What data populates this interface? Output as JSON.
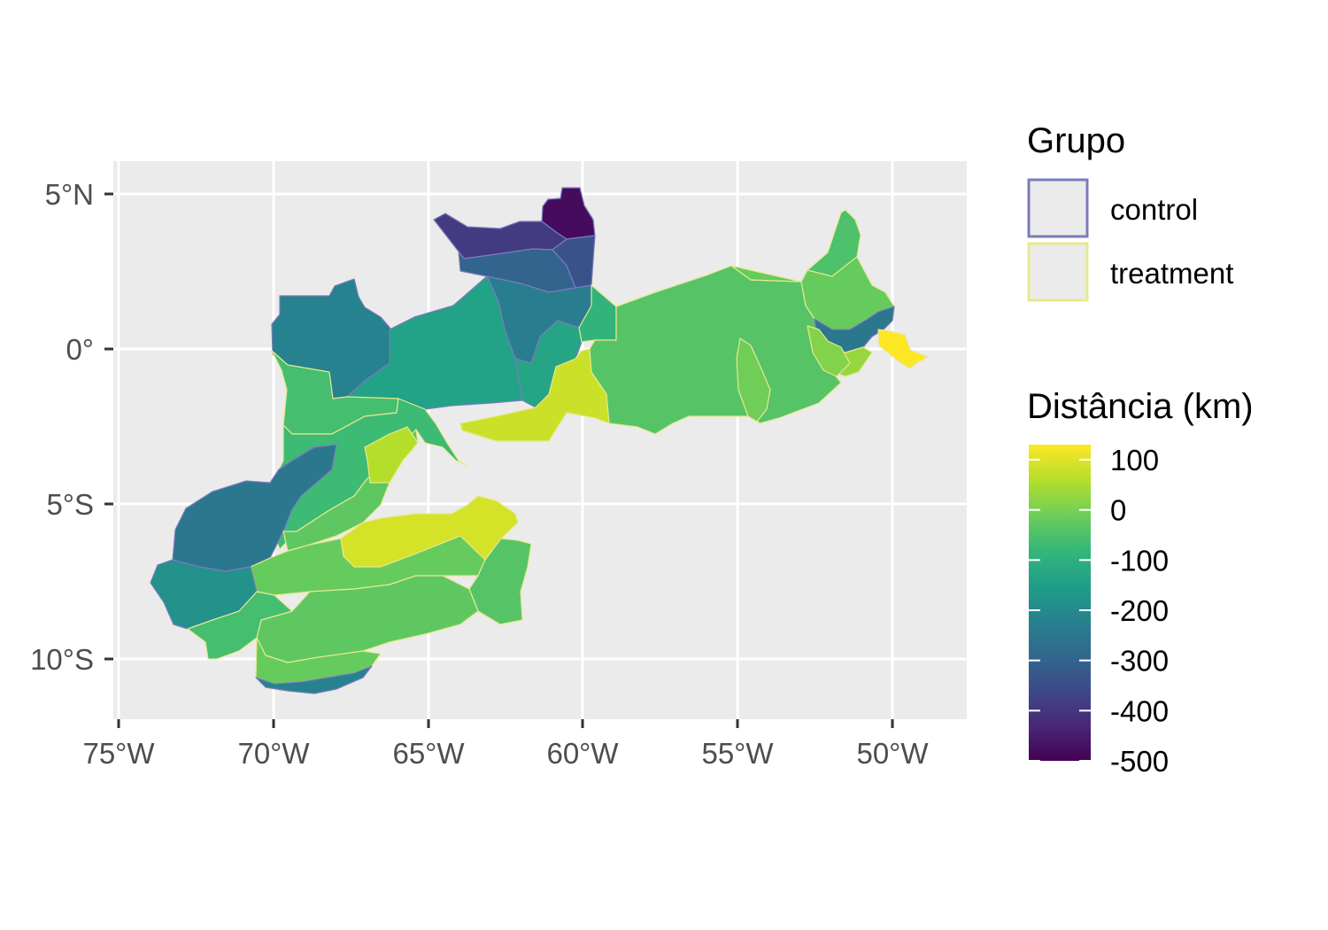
{
  "map": {
    "lon_ticks": [
      "75°W",
      "70°W",
      "65°W",
      "60°W",
      "55°W",
      "50°W"
    ],
    "lat_ticks": [
      "5°N",
      "0°",
      "5°S",
      "10°S"
    ],
    "panel_background": "#ebebeb",
    "grid_color": "#ffffff",
    "regions": [
      {
        "id": "roraima-north",
        "group": "control",
        "value": -480
      },
      {
        "id": "roraima-northwest",
        "group": "control",
        "value": -390
      },
      {
        "id": "roraima-east",
        "group": "control",
        "value": -340
      },
      {
        "id": "roraima-central",
        "group": "control",
        "value": -300
      },
      {
        "id": "roraima-south",
        "group": "control",
        "value": -230
      },
      {
        "id": "amazonas-northwest",
        "group": "control",
        "value": -220
      },
      {
        "id": "amazonas-rio-negro",
        "group": "control",
        "value": -140
      },
      {
        "id": "amazonas-central",
        "group": "control",
        "value": -130
      },
      {
        "id": "amazonas-manaus-west",
        "group": "treatment",
        "value": -90
      },
      {
        "id": "amazonas-manaus",
        "group": "treatment",
        "value": 80
      },
      {
        "id": "amazonas-solimoes",
        "group": "treatment",
        "value": 60
      },
      {
        "id": "para-trombetas",
        "group": "treatment",
        "value": -40
      },
      {
        "id": "para-calha-norte",
        "group": "treatment",
        "value": -20
      },
      {
        "id": "para-northeast",
        "group": "treatment",
        "value": 10
      },
      {
        "id": "amapa",
        "group": "treatment",
        "value": -50
      },
      {
        "id": "marajo",
        "group": "treatment",
        "value": 30
      },
      {
        "id": "amapa-delta",
        "group": "control",
        "value": -250
      },
      {
        "id": "belem",
        "group": "treatment",
        "value": 130
      },
      {
        "id": "para-xingu-north",
        "group": "treatment",
        "value": -10
      },
      {
        "id": "amazonas-west",
        "group": "treatment",
        "value": -60
      },
      {
        "id": "amazonas-far-west",
        "group": "control",
        "value": -250
      },
      {
        "id": "amazonas-jurua",
        "group": "treatment",
        "value": -70
      },
      {
        "id": "amazonas-purus",
        "group": "treatment",
        "value": -30
      },
      {
        "id": "amazonas-madeira",
        "group": "treatment",
        "value": 90
      },
      {
        "id": "amazonas-south",
        "group": "treatment",
        "value": -20
      },
      {
        "id": "rondonia-north",
        "group": "treatment",
        "value": -40
      },
      {
        "id": "rondonia",
        "group": "treatment",
        "value": -30
      },
      {
        "id": "acre-west",
        "group": "control",
        "value": -180
      },
      {
        "id": "acre-central",
        "group": "treatment",
        "value": -60
      },
      {
        "id": "acre-east",
        "group": "treatment",
        "value": -20
      },
      {
        "id": "acre-south",
        "group": "control",
        "value": -220
      }
    ]
  },
  "legend": {
    "group": {
      "title": "Grupo",
      "items": [
        {
          "label": "control",
          "color": "#7b7bbd"
        },
        {
          "label": "treatment",
          "color": "#e8e88f"
        }
      ]
    },
    "distance": {
      "title": "Distância (km)",
      "min": -500,
      "max": 130,
      "breaks": [
        "100",
        "0",
        "-100",
        "-200",
        "-300",
        "-400",
        "-500"
      ],
      "colors": [
        "#440154",
        "#482878",
        "#3e4989",
        "#31688e",
        "#26828e",
        "#1f9e89",
        "#35b779",
        "#6ece58",
        "#b5de2b",
        "#fde725"
      ]
    }
  }
}
